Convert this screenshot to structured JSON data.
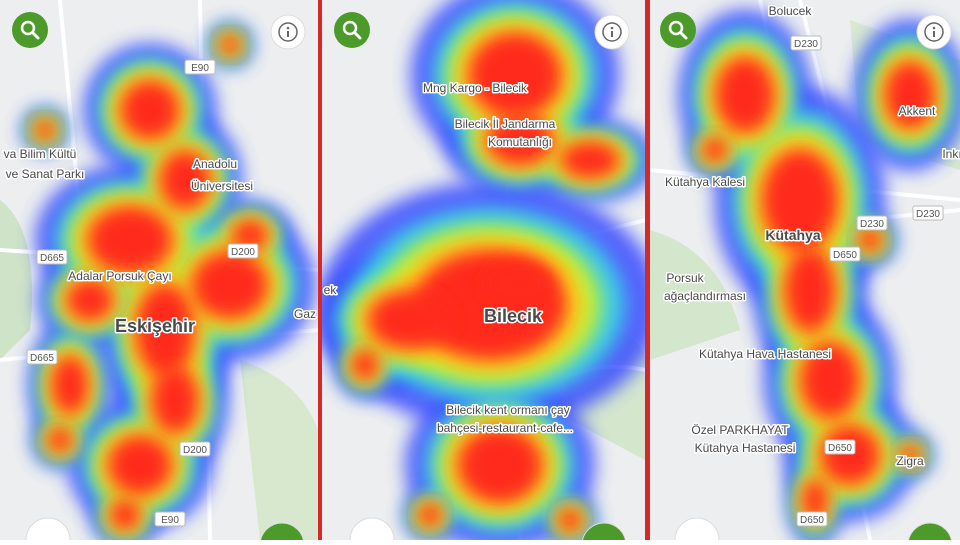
{
  "panels": [
    {
      "labels": [
        "Eskişehir",
        "Adalar Porsuk Çayı",
        "Anadolu",
        "Üniversitesi",
        "va Bilim Kültü",
        "ve Sanat Parkı",
        "Gaz"
      ],
      "roads": [
        "E90",
        "D665",
        "D200",
        "D665",
        "D200",
        "E90"
      ]
    },
    {
      "labels": [
        "Mng Kargo - Bilecik",
        "Bilecik İl Jandarma",
        "Komutanlığı",
        "Bilecik",
        "Bilecik kent ormanı çay",
        "bahçesi-restaurant-cafe...",
        "ek"
      ],
      "roads": []
    },
    {
      "labels": [
        "Bolucek",
        "Kütahya Kalesi",
        "Kütahya",
        "Porsuk",
        "ağaçlandırması",
        "Kütahya Hava Hastanesi",
        "Özel PARKHAYAT",
        "Kütahya Hastanesi",
        "Akkent",
        "Zigra",
        "Inkı"
      ],
      "roads": [
        "D230",
        "D230",
        "D230",
        "D650",
        "D650",
        "D650"
      ]
    }
  ]
}
